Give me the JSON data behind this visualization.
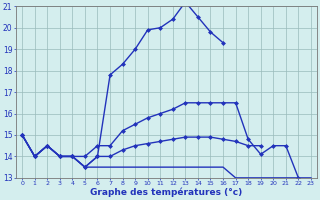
{
  "title": "Graphe des températures (°c)",
  "hours": [
    0,
    1,
    2,
    3,
    4,
    5,
    6,
    7,
    8,
    9,
    10,
    11,
    12,
    13,
    14,
    15,
    16,
    17,
    18,
    19,
    20,
    21,
    22,
    23
  ],
  "line1_x": [
    0,
    1,
    2,
    3,
    4,
    5,
    6,
    7,
    8,
    9,
    10,
    11,
    12,
    13,
    14,
    15,
    16
  ],
  "line1_y": [
    15.0,
    14.0,
    14.5,
    14.0,
    14.0,
    13.5,
    14.0,
    17.8,
    18.3,
    19.0,
    19.9,
    20.0,
    20.4,
    21.2,
    20.5,
    19.8,
    19.3
  ],
  "line2_x": [
    0,
    1,
    2,
    3,
    4,
    5,
    6,
    7,
    8,
    9,
    10,
    11,
    12,
    13,
    14,
    15,
    16,
    17,
    18,
    19,
    20,
    21,
    22,
    23
  ],
  "line2_y": [
    15.0,
    14.0,
    14.5,
    14.0,
    14.0,
    14.0,
    14.5,
    14.5,
    15.2,
    15.5,
    15.8,
    16.0,
    16.2,
    16.5,
    16.5,
    16.5,
    16.5,
    16.5,
    14.8,
    14.1,
    14.5,
    14.5,
    13.0,
    null
  ],
  "line3_x": [
    0,
    1,
    2,
    3,
    4,
    5,
    6,
    7,
    8,
    9,
    10,
    11,
    12,
    13,
    14,
    15,
    16,
    17,
    18,
    19,
    20,
    21,
    22,
    23
  ],
  "line3_y": [
    15.0,
    14.0,
    14.5,
    14.0,
    14.0,
    13.5,
    14.0,
    14.0,
    14.3,
    14.5,
    14.6,
    14.7,
    14.8,
    14.9,
    14.9,
    14.9,
    14.8,
    14.7,
    14.5,
    14.5,
    null,
    null,
    null,
    null
  ],
  "line4_x": [
    0,
    1,
    2,
    3,
    4,
    5,
    6,
    7,
    8,
    9,
    10,
    11,
    12,
    13,
    14,
    15,
    16,
    17,
    18,
    19,
    20,
    21,
    22,
    23
  ],
  "line4_y": [
    15.0,
    14.0,
    14.5,
    14.0,
    14.0,
    13.5,
    13.5,
    13.5,
    13.5,
    13.5,
    13.5,
    13.5,
    13.5,
    13.5,
    13.5,
    13.5,
    13.5,
    13.0,
    13.0,
    13.0,
    13.0,
    13.0,
    13.0,
    13.0
  ],
  "line_color": "#2233bb",
  "bg_color": "#d4eeee",
  "grid_color": "#99bbbb",
  "ylim": [
    13,
    21
  ],
  "yticks": [
    13,
    14,
    15,
    16,
    17,
    18,
    19,
    20,
    21
  ],
  "xticks": [
    0,
    1,
    2,
    3,
    4,
    5,
    6,
    7,
    8,
    9,
    10,
    11,
    12,
    13,
    14,
    15,
    16,
    17,
    18,
    19,
    20,
    21,
    22,
    23
  ],
  "marker": "D",
  "markersize": 2.5,
  "linewidth": 1.0
}
